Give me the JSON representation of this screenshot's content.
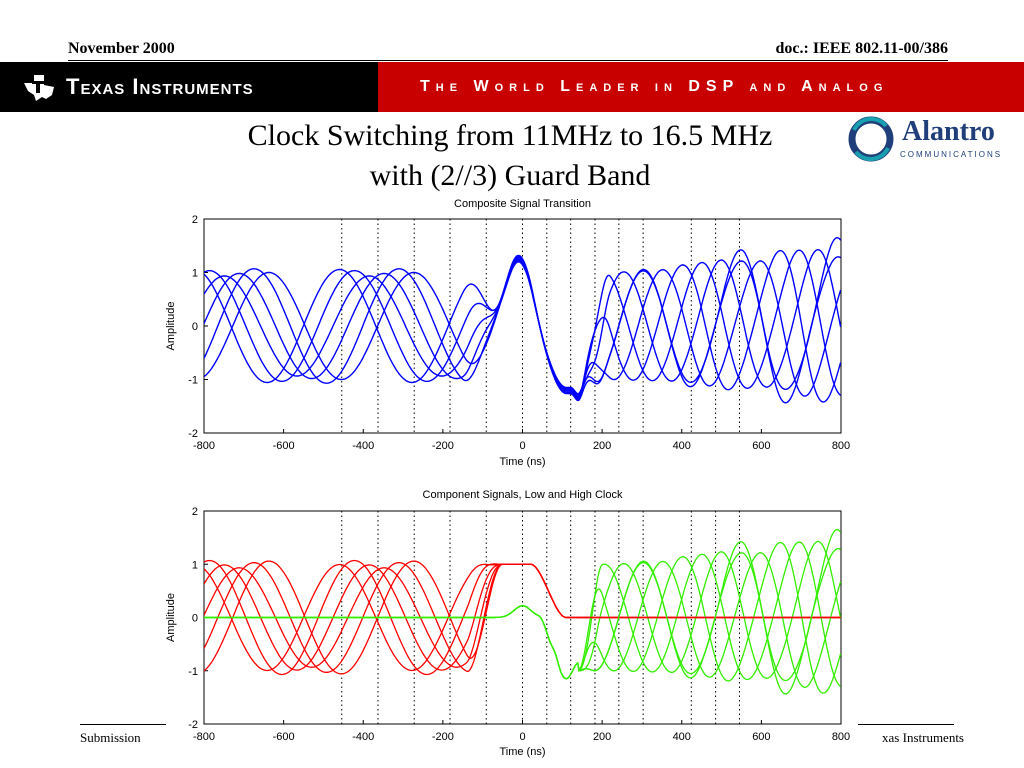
{
  "header": {
    "date": "November 2000",
    "doc": "doc.: IEEE 802.11-00/386",
    "company": "Texas Instruments",
    "tagline": "The World Leader in DSP and Analog"
  },
  "slide": {
    "title_line1": "Clock Switching from 11MHz to 16.5 MHz",
    "title_line2": "with (2//3) Guard Band"
  },
  "partner": {
    "name": "Alantro",
    "subtitle": "COMMUNICATIONS"
  },
  "footer": {
    "left": "Submission",
    "right": "xas Instruments"
  },
  "colors": {
    "banner_black": "#000000",
    "banner_red": "#c80000",
    "blue": "#0000ff",
    "red": "#ff0000",
    "green": "#33ee00"
  },
  "chart_data": [
    {
      "type": "line",
      "title": "Composite Signal Transition",
      "xlabel": "Time (ns)",
      "ylabel": "Amplitude",
      "xlim": [
        -800,
        800
      ],
      "ylim": [
        -2,
        2
      ],
      "xticks": [
        "-800",
        "-600",
        "-400",
        "-200",
        "0",
        "200",
        "400",
        "600",
        "800"
      ],
      "yticks": [
        "2",
        "1",
        "0",
        "-1",
        "-2"
      ],
      "grid_vlines_x": [
        -454,
        -363,
        -272,
        -182,
        -91,
        0,
        61,
        121,
        182,
        242,
        303,
        424,
        485,
        545
      ],
      "segments": [
        {
          "name": "low clock",
          "x_range": [
            -800,
            -100
          ],
          "period_ns": 182,
          "levels": [
            -1,
            1
          ]
        },
        {
          "name": "transition",
          "x_range": [
            -100,
            150
          ],
          "peak": 1.2,
          "trough": -1.2
        },
        {
          "name": "high clock",
          "x_range": [
            150,
            800
          ],
          "period_ns": 121,
          "levels": [
            -1,
            1
          ],
          "max_overshoot": 1.9
        }
      ],
      "series": [
        {
          "color": "#0000ff"
        }
      ]
    },
    {
      "type": "line",
      "title": "Component Signals, Low and High Clock",
      "xlabel": "Time (ns)",
      "ylabel": "Amplitude",
      "xlim": [
        -800,
        800
      ],
      "ylim": [
        -2,
        2
      ],
      "xticks": [
        "-800",
        "-600",
        "-400",
        "-200",
        "0",
        "200",
        "400",
        "600",
        "800"
      ],
      "yticks": [
        "2",
        "1",
        "0",
        "-1",
        "-2"
      ],
      "grid_vlines_x": [
        -454,
        -363,
        -272,
        -182,
        -91,
        0,
        61,
        121,
        182,
        242,
        303,
        424,
        485,
        545
      ],
      "series": [
        {
          "color": "#ff0000",
          "active_x": [
            -800,
            100
          ],
          "period_ns": 182,
          "levels": [
            -1,
            1
          ]
        },
        {
          "color": "#33ee00",
          "active_x": [
            -100,
            800
          ],
          "period_ns": 121,
          "levels": [
            -1,
            1
          ],
          "max_overshoot": 1.9
        }
      ]
    }
  ]
}
